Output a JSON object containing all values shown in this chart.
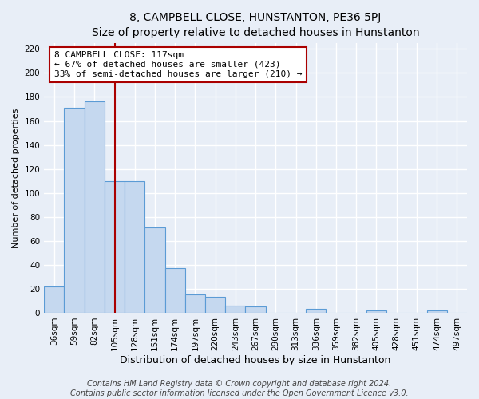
{
  "title": "8, CAMPBELL CLOSE, HUNSTANTON, PE36 5PJ",
  "subtitle": "Size of property relative to detached houses in Hunstanton",
  "xlabel": "Distribution of detached houses by size in Hunstanton",
  "ylabel": "Number of detached properties",
  "categories": [
    "36sqm",
    "59sqm",
    "82sqm",
    "105sqm",
    "128sqm",
    "151sqm",
    "174sqm",
    "197sqm",
    "220sqm",
    "243sqm",
    "267sqm",
    "290sqm",
    "313sqm",
    "336sqm",
    "359sqm",
    "382sqm",
    "405sqm",
    "428sqm",
    "451sqm",
    "474sqm",
    "497sqm"
  ],
  "values": [
    22,
    171,
    176,
    110,
    110,
    71,
    37,
    15,
    13,
    6,
    5,
    0,
    0,
    3,
    0,
    0,
    2,
    0,
    0,
    2,
    0
  ],
  "bar_color": "#c5d8ef",
  "bar_edge_color": "#5b9bd5",
  "annotation_title": "8 CAMPBELL CLOSE: 117sqm",
  "annotation_line1": "← 67% of detached houses are smaller (423)",
  "annotation_line2": "33% of semi-detached houses are larger (210) →",
  "ylim": [
    0,
    225
  ],
  "yticks": [
    0,
    20,
    40,
    60,
    80,
    100,
    120,
    140,
    160,
    180,
    200,
    220
  ],
  "footer1": "Contains HM Land Registry data © Crown copyright and database right 2024.",
  "footer2": "Contains public sector information licensed under the Open Government Licence v3.0.",
  "background_color": "#e8eef7",
  "plot_bg_color": "#e8eef7",
  "grid_color": "#ffffff",
  "ref_line_color": "#aa0000",
  "title_fontsize": 10,
  "xlabel_fontsize": 9,
  "ylabel_fontsize": 8,
  "tick_fontsize": 7.5,
  "annotation_fontsize": 8,
  "footer_fontsize": 7
}
